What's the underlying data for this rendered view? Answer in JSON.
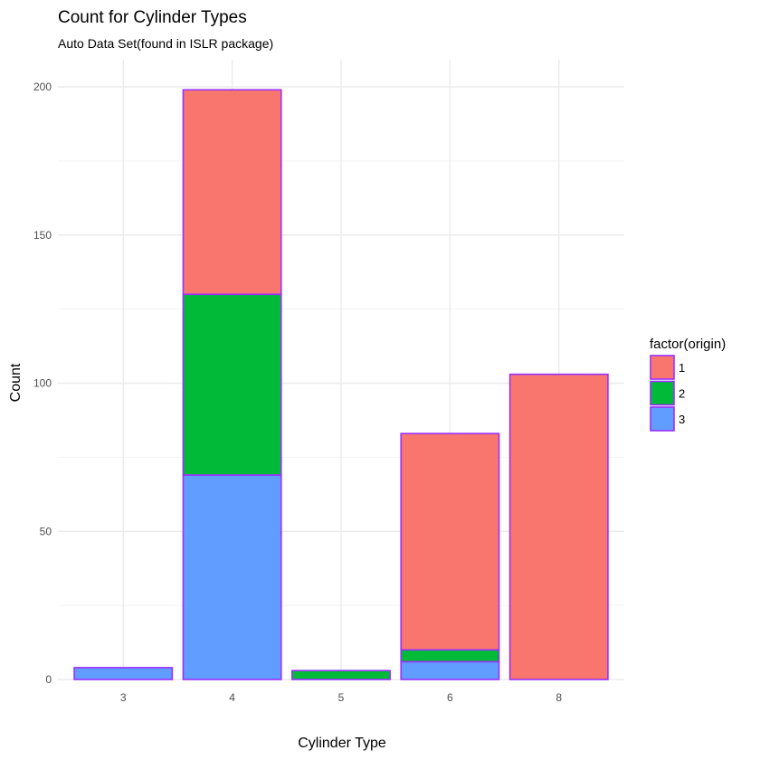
{
  "chart_data": {
    "type": "bar",
    "stacked": true,
    "title": "Count for Cylinder Types",
    "subtitle": "Auto Data Set(found in ISLR package)",
    "xlabel": "Cylinder Type",
    "ylabel": "Count",
    "categories": [
      "3",
      "4",
      "5",
      "6",
      "8"
    ],
    "ylim": [
      0,
      209
    ],
    "yticks": [
      0,
      50,
      100,
      150,
      200
    ],
    "grid": true,
    "legend": {
      "title": "factor(origin)",
      "position": "right"
    },
    "bar_outline_color": "#9B30FF",
    "series": [
      {
        "name": "1",
        "color": "#F8766D",
        "values": [
          0,
          69,
          0,
          73,
          103
        ]
      },
      {
        "name": "2",
        "color": "#00BA38",
        "values": [
          0,
          61,
          3,
          4,
          0
        ]
      },
      {
        "name": "3",
        "color": "#619CFF",
        "values": [
          4,
          69,
          0,
          6,
          0
        ]
      }
    ]
  }
}
